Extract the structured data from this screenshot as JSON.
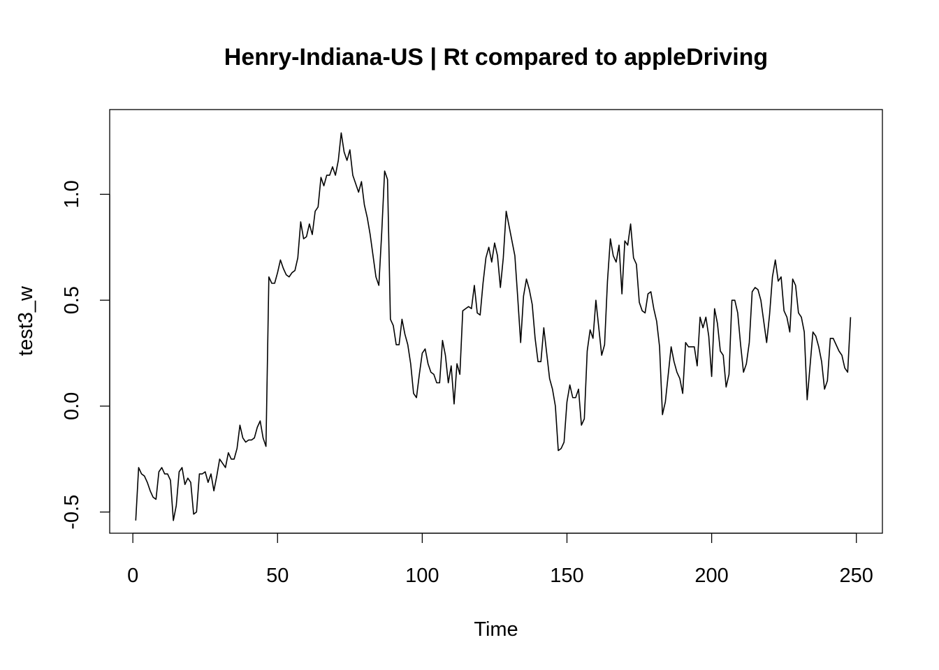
{
  "chart_data": {
    "type": "line",
    "title": "Henry-Indiana-US | Rt compared to appleDriving",
    "xlabel": "Time",
    "ylabel": "test3_w",
    "xlim": [
      -8,
      259
    ],
    "ylim": [
      -0.6,
      1.4
    ],
    "x_ticks": [
      {
        "value": 0,
        "label": "0"
      },
      {
        "value": 50,
        "label": "50"
      },
      {
        "value": 100,
        "label": "100"
      },
      {
        "value": 150,
        "label": "150"
      },
      {
        "value": 200,
        "label": "200"
      },
      {
        "value": 250,
        "label": "250"
      }
    ],
    "y_ticks": [
      {
        "value": -0.5,
        "label": "-0.5"
      },
      {
        "value": 0.0,
        "label": "0.0"
      },
      {
        "value": 0.5,
        "label": "0.5"
      },
      {
        "value": 1.0,
        "label": "1.0"
      }
    ],
    "grid": false,
    "line_color": "#000000",
    "series": [
      {
        "x_start": 1,
        "values": [
          -0.54,
          -0.29,
          -0.32,
          -0.33,
          -0.36,
          -0.4,
          -0.43,
          -0.44,
          -0.31,
          -0.29,
          -0.32,
          -0.32,
          -0.35,
          -0.54,
          -0.47,
          -0.31,
          -0.29,
          -0.37,
          -0.34,
          -0.36,
          -0.51,
          -0.5,
          -0.32,
          -0.32,
          -0.31,
          -0.36,
          -0.32,
          -0.4,
          -0.33,
          -0.25,
          -0.27,
          -0.29,
          -0.22,
          -0.25,
          -0.25,
          -0.2,
          -0.09,
          -0.15,
          -0.17,
          -0.16,
          -0.16,
          -0.15,
          -0.1,
          -0.07,
          -0.15,
          -0.19,
          0.61,
          0.58,
          0.58,
          0.63,
          0.69,
          0.65,
          0.62,
          0.61,
          0.63,
          0.64,
          0.7,
          0.87,
          0.79,
          0.8,
          0.86,
          0.81,
          0.92,
          0.94,
          1.08,
          1.04,
          1.09,
          1.09,
          1.13,
          1.09,
          1.16,
          1.29,
          1.2,
          1.16,
          1.21,
          1.09,
          1.05,
          1.01,
          1.06,
          0.95,
          0.89,
          0.81,
          0.71,
          0.61,
          0.57,
          0.82,
          1.11,
          1.07,
          0.41,
          0.38,
          0.29,
          0.29,
          0.41,
          0.34,
          0.29,
          0.2,
          0.06,
          0.04,
          0.15,
          0.25,
          0.27,
          0.2,
          0.16,
          0.15,
          0.11,
          0.11,
          0.31,
          0.24,
          0.11,
          0.19,
          0.01,
          0.2,
          0.15,
          0.45,
          0.46,
          0.47,
          0.46,
          0.57,
          0.44,
          0.43,
          0.58,
          0.7,
          0.75,
          0.68,
          0.77,
          0.71,
          0.56,
          0.7,
          0.92,
          0.85,
          0.78,
          0.71,
          0.51,
          0.3,
          0.52,
          0.6,
          0.55,
          0.48,
          0.32,
          0.21,
          0.21,
          0.37,
          0.25,
          0.13,
          0.08,
          0.0,
          -0.21,
          -0.2,
          -0.17,
          0.02,
          0.1,
          0.04,
          0.04,
          0.08,
          -0.09,
          -0.06,
          0.26,
          0.36,
          0.32,
          0.5,
          0.37,
          0.24,
          0.29,
          0.59,
          0.79,
          0.71,
          0.68,
          0.76,
          0.53,
          0.78,
          0.76,
          0.86,
          0.7,
          0.67,
          0.49,
          0.45,
          0.44,
          0.53,
          0.54,
          0.46,
          0.4,
          0.28,
          -0.04,
          0.02,
          0.15,
          0.28,
          0.21,
          0.16,
          0.13,
          0.06,
          0.3,
          0.28,
          0.28,
          0.28,
          0.19,
          0.42,
          0.37,
          0.42,
          0.33,
          0.14,
          0.46,
          0.39,
          0.26,
          0.24,
          0.09,
          0.15,
          0.5,
          0.5,
          0.44,
          0.29,
          0.16,
          0.2,
          0.3,
          0.54,
          0.56,
          0.55,
          0.5,
          0.4,
          0.3,
          0.43,
          0.61,
          0.69,
          0.59,
          0.61,
          0.45,
          0.42,
          0.35,
          0.6,
          0.57,
          0.44,
          0.42,
          0.35,
          0.03,
          0.19,
          0.35,
          0.33,
          0.28,
          0.21,
          0.08,
          0.12,
          0.32,
          0.32,
          0.29,
          0.26,
          0.24,
          0.18,
          0.16,
          0.42
        ]
      }
    ]
  }
}
